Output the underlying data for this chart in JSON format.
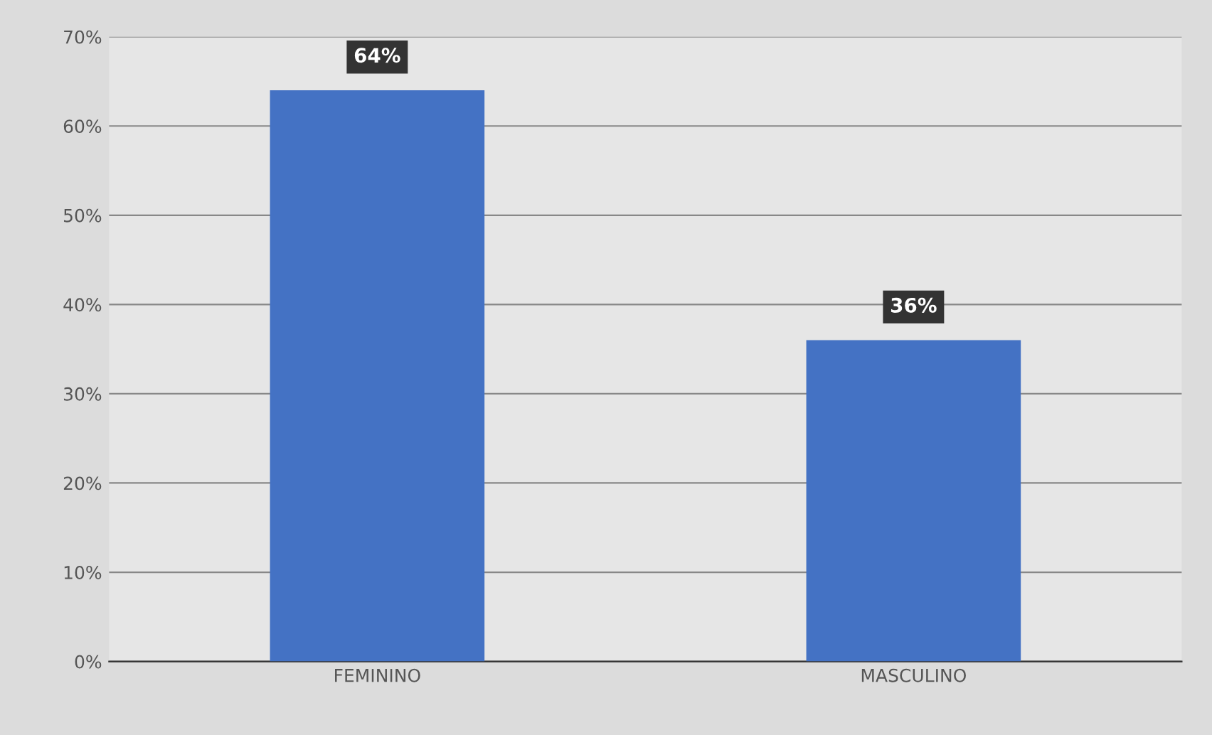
{
  "chart_data": {
    "type": "bar",
    "categories": [
      "FEMININO",
      "MASCULINO"
    ],
    "values": [
      64,
      36
    ],
    "color": "#4472c4",
    "value_labels": [
      "64%",
      "36%"
    ],
    "ylim": [
      0,
      70
    ],
    "yticks": [
      {
        "value": 0,
        "label": "0%"
      },
      {
        "value": 10,
        "label": "10%"
      },
      {
        "value": 20,
        "label": "20%"
      },
      {
        "value": 30,
        "label": "30%"
      },
      {
        "value": 40,
        "label": "40%"
      },
      {
        "value": 50,
        "label": "50%"
      },
      {
        "value": 60,
        "label": "60%"
      },
      {
        "value": 70,
        "label": "70%"
      }
    ],
    "grid": "y"
  }
}
